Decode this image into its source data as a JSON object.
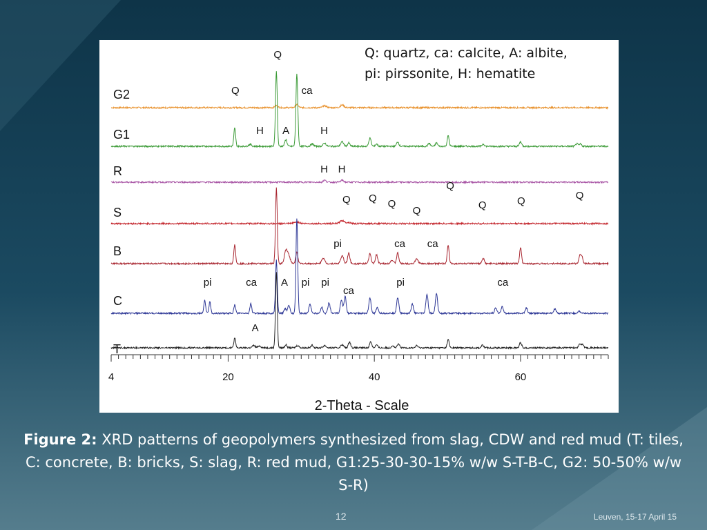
{
  "slide": {
    "caption_bold": "Figure 2:",
    "caption_text": " XRD patterns of geopolymers synthesized from slag, CDW and red mud (T: tiles, C: concrete, B: bricks, S: slag, R: red mud, G1:25-30-30-15% w/w S-T-B-C, G2: 50-50% w/w S-R)",
    "slide_number": "12",
    "footer": "Leuven, 15-17 April 15"
  },
  "chart_data": {
    "type": "line",
    "xlabel": "2-Theta - Scale",
    "xlim": [
      4,
      72
    ],
    "x_ticks": [
      4,
      20,
      40,
      60
    ],
    "legend_lines": [
      "Q: quartz, ca: calcite, A: albite,",
      "pi: pirssonite, H: hematite"
    ],
    "series": [
      {
        "name": "G2",
        "color": "#e8902a",
        "peaks": [
          [
            26.6,
            6,
            0.2
          ],
          [
            29.4,
            8,
            0.2
          ],
          [
            33.2,
            5,
            0.25
          ],
          [
            35.6,
            7,
            0.25
          ]
        ]
      },
      {
        "name": "G1",
        "color": "#3a9a35",
        "peaks": [
          [
            20.9,
            48,
            0.12
          ],
          [
            23.0,
            5,
            0.2
          ],
          [
            26.6,
            200,
            0.12
          ],
          [
            27.9,
            18,
            0.15
          ],
          [
            29.4,
            190,
            0.13
          ],
          [
            31.5,
            6,
            0.2
          ],
          [
            33.2,
            8,
            0.2
          ],
          [
            35.6,
            12,
            0.2
          ],
          [
            36.5,
            9,
            0.15
          ],
          [
            39.4,
            22,
            0.15
          ],
          [
            40.3,
            6,
            0.15
          ],
          [
            43.2,
            12,
            0.15
          ],
          [
            47.5,
            8,
            0.15
          ],
          [
            48.5,
            9,
            0.15
          ],
          [
            50.1,
            28,
            0.13
          ],
          [
            54.9,
            6,
            0.15
          ],
          [
            60.0,
            12,
            0.15
          ],
          [
            67.7,
            7,
            0.15
          ],
          [
            68.2,
            6,
            0.15
          ]
        ]
      },
      {
        "name": "R",
        "color": "#a855a5",
        "peaks": [
          [
            33.2,
            5,
            0.2
          ],
          [
            35.6,
            5,
            0.2
          ]
        ]
      },
      {
        "name": "S",
        "color": "#c3242b",
        "peaks": [
          [
            29.4,
            4,
            0.4
          ],
          [
            35.6,
            8,
            0.3
          ],
          [
            36.5,
            3,
            0.3
          ]
        ]
      },
      {
        "name": "B",
        "color": "#a8252f",
        "peaks": [
          [
            20.9,
            50,
            0.12
          ],
          [
            26.6,
            200,
            0.12
          ],
          [
            27.9,
            35,
            0.2
          ],
          [
            28.3,
            20,
            0.2
          ],
          [
            29.4,
            30,
            0.15
          ],
          [
            33.0,
            15,
            0.2
          ],
          [
            35.6,
            20,
            0.2
          ],
          [
            36.5,
            28,
            0.15
          ],
          [
            39.4,
            26,
            0.15
          ],
          [
            40.3,
            24,
            0.15
          ],
          [
            42.4,
            9,
            0.2
          ],
          [
            43.2,
            28,
            0.15
          ],
          [
            45.8,
            12,
            0.2
          ],
          [
            50.1,
            48,
            0.13
          ],
          [
            54.9,
            14,
            0.15
          ],
          [
            60.0,
            42,
            0.13
          ],
          [
            68.1,
            22,
            0.13
          ],
          [
            68.4,
            20,
            0.13
          ]
        ]
      },
      {
        "name": "C",
        "color": "#2b3595",
        "peaks": [
          [
            16.8,
            34,
            0.12
          ],
          [
            17.5,
            30,
            0.12
          ],
          [
            20.9,
            22,
            0.12
          ],
          [
            23.1,
            26,
            0.12
          ],
          [
            26.6,
            140,
            0.12
          ],
          [
            27.8,
            12,
            0.15
          ],
          [
            28.3,
            22,
            0.15
          ],
          [
            29.4,
            250,
            0.12
          ],
          [
            31.2,
            24,
            0.15
          ],
          [
            32.8,
            16,
            0.15
          ],
          [
            33.8,
            28,
            0.15
          ],
          [
            35.5,
            35,
            0.15
          ],
          [
            36.0,
            45,
            0.15
          ],
          [
            39.4,
            40,
            0.15
          ],
          [
            40.4,
            14,
            0.15
          ],
          [
            43.2,
            42,
            0.15
          ],
          [
            45.2,
            24,
            0.15
          ],
          [
            47.2,
            50,
            0.15
          ],
          [
            48.5,
            52,
            0.15
          ],
          [
            56.6,
            14,
            0.15
          ],
          [
            57.5,
            18,
            0.15
          ],
          [
            60.8,
            14,
            0.15
          ],
          [
            64.7,
            12,
            0.15
          ],
          [
            68.0,
            6,
            0.15
          ]
        ]
      },
      {
        "name": "T",
        "color": "#222222",
        "peaks": [
          [
            20.9,
            26,
            0.12
          ],
          [
            23.5,
            6,
            0.2
          ],
          [
            24.3,
            5,
            0.2
          ],
          [
            26.6,
            200,
            0.12
          ],
          [
            27.9,
            8,
            0.15
          ],
          [
            29.5,
            6,
            0.2
          ],
          [
            31.5,
            7,
            0.15
          ],
          [
            33.2,
            6,
            0.2
          ],
          [
            35.6,
            8,
            0.2
          ],
          [
            36.6,
            16,
            0.15
          ],
          [
            39.5,
            16,
            0.15
          ],
          [
            40.3,
            8,
            0.15
          ],
          [
            42.5,
            6,
            0.15
          ],
          [
            43.3,
            10,
            0.15
          ],
          [
            45.8,
            6,
            0.15
          ],
          [
            50.1,
            22,
            0.13
          ],
          [
            54.8,
            7,
            0.15
          ],
          [
            60.0,
            14,
            0.15
          ],
          [
            68.1,
            10,
            0.15
          ],
          [
            68.5,
            9,
            0.15
          ]
        ]
      }
    ],
    "annotations": [
      {
        "text": "Q",
        "x": 26.8,
        "series": "G2"
      },
      {
        "text": "Q",
        "x": 21.0,
        "series": "G2"
      },
      {
        "text": "ca",
        "x": 30.6,
        "series": "G2"
      },
      {
        "text": "A",
        "x": 28.0,
        "series": "G1"
      },
      {
        "text": "H",
        "x": 33.2,
        "series": "G1"
      },
      {
        "text": "H",
        "x": 24.4,
        "series": "G1"
      },
      {
        "text": "H",
        "x": 33.2,
        "series": "R"
      },
      {
        "text": "H",
        "x": 35.6,
        "series": "R"
      },
      {
        "text": "Q",
        "x": 39.8,
        "series": "S"
      },
      {
        "text": "Q",
        "x": 50.4,
        "series": "S"
      },
      {
        "text": "Q",
        "x": 36.2,
        "series": "S"
      },
      {
        "text": "Q",
        "x": 42.4,
        "series": "S"
      },
      {
        "text": "Q",
        "x": 45.8,
        "series": "S"
      },
      {
        "text": "Q",
        "x": 54.8,
        "series": "S"
      },
      {
        "text": "Q",
        "x": 60.1,
        "series": "S"
      },
      {
        "text": "Q",
        "x": 68.1,
        "series": "S"
      },
      {
        "text": "pi",
        "x": 35.0,
        "series": "B"
      },
      {
        "text": "ca",
        "x": 43.3,
        "series": "B"
      },
      {
        "text": "ca",
        "x": 47.8,
        "series": "B"
      },
      {
        "text": "pi",
        "x": 17.2,
        "series": "C"
      },
      {
        "text": "ca",
        "x": 23.0,
        "series": "C"
      },
      {
        "text": "A",
        "x": 27.8,
        "series": "C"
      },
      {
        "text": "pi",
        "x": 30.6,
        "series": "C"
      },
      {
        "text": "pi",
        "x": 33.3,
        "series": "C"
      },
      {
        "text": "ca",
        "x": 36.3,
        "series": "C"
      },
      {
        "text": "pi",
        "x": 43.6,
        "series": "C"
      },
      {
        "text": "ca",
        "x": 57.4,
        "series": "C"
      },
      {
        "text": "A",
        "x": 23.8,
        "series": "T"
      }
    ]
  }
}
